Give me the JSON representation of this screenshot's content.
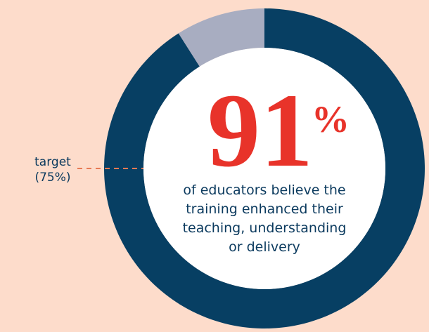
{
  "chart_data": {
    "type": "donut",
    "values": [
      91,
      9
    ],
    "colors": [
      "#073f63",
      "#a8adc1"
    ],
    "value_label": "91",
    "value_unit": "%",
    "description": [
      "of educators believe the",
      "training enhanced their",
      "teaching, understanding",
      "or delivery"
    ],
    "target_name": "target",
    "target": {
      "value": 75,
      "label": "(75%)"
    },
    "target_color": "#e87a55"
  }
}
